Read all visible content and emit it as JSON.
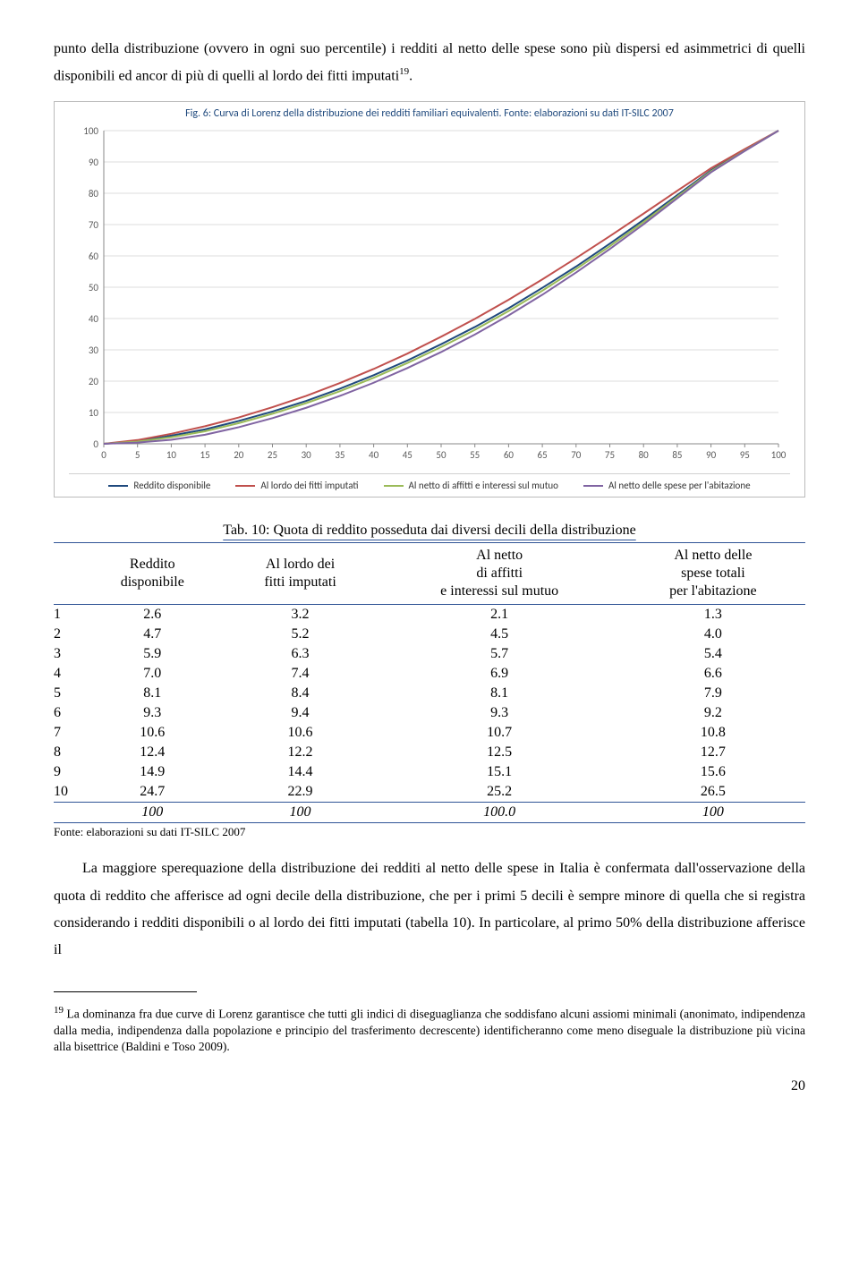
{
  "para1": "punto della distribuzione (ovvero in ogni suo percentile) i redditi al netto delle spese sono più dispersi ed asimmetrici di quelli disponibili ed ancor di più di quelli al lordo dei fitti imputati",
  "para1_sup": "19",
  "para1_end": ".",
  "chart": {
    "title": "Fig. 6: Curva di Lorenz della distribuzione dei redditi familiari equivalenti. Fonte: elaborazioni su dati IT-SILC 2007",
    "xticks": [
      0,
      5,
      10,
      15,
      20,
      25,
      30,
      35,
      40,
      45,
      50,
      55,
      60,
      65,
      70,
      75,
      80,
      85,
      90,
      95,
      100
    ],
    "yticks": [
      0,
      10,
      20,
      30,
      40,
      50,
      60,
      70,
      80,
      90,
      100
    ],
    "grid_color": "#dcdcdc",
    "background": "#ffffff",
    "series": [
      {
        "label": "Reddito disponibile",
        "color": "#1f497d",
        "points": [
          [
            0,
            0
          ],
          [
            5,
            0.8
          ],
          [
            10,
            2.6
          ],
          [
            15,
            4.6
          ],
          [
            20,
            7.3
          ],
          [
            25,
            10.3
          ],
          [
            30,
            13.7
          ],
          [
            35,
            17.6
          ],
          [
            40,
            21.9
          ],
          [
            45,
            26.6
          ],
          [
            50,
            31.8
          ],
          [
            55,
            37.3
          ],
          [
            60,
            43.3
          ],
          [
            65,
            49.8
          ],
          [
            70,
            56.6
          ],
          [
            75,
            63.9
          ],
          [
            80,
            71.5
          ],
          [
            85,
            79.4
          ],
          [
            90,
            87.3
          ],
          [
            95,
            93.8
          ],
          [
            100,
            100
          ]
        ]
      },
      {
        "label": "Al lordo dei fitti imputati",
        "color": "#c0504d",
        "points": [
          [
            0,
            0
          ],
          [
            5,
            1.2
          ],
          [
            10,
            3.2
          ],
          [
            15,
            5.6
          ],
          [
            20,
            8.4
          ],
          [
            25,
            11.7
          ],
          [
            30,
            15.3
          ],
          [
            35,
            19.4
          ],
          [
            40,
            23.9
          ],
          [
            45,
            28.8
          ],
          [
            50,
            34.2
          ],
          [
            55,
            39.9
          ],
          [
            60,
            46.0
          ],
          [
            65,
            52.5
          ],
          [
            70,
            59.3
          ],
          [
            75,
            66.3
          ],
          [
            80,
            73.5
          ],
          [
            85,
            80.8
          ],
          [
            90,
            88.0
          ],
          [
            95,
            94.1
          ],
          [
            100,
            100
          ]
        ]
      },
      {
        "label": "Al netto di affitti e interessi sul mutuo",
        "color": "#9bbb59",
        "points": [
          [
            0,
            0
          ],
          [
            5,
            0.7
          ],
          [
            10,
            2.1
          ],
          [
            15,
            4.0
          ],
          [
            20,
            6.6
          ],
          [
            25,
            9.6
          ],
          [
            30,
            13.0
          ],
          [
            35,
            16.8
          ],
          [
            40,
            21.1
          ],
          [
            45,
            25.8
          ],
          [
            50,
            30.9
          ],
          [
            55,
            36.4
          ],
          [
            60,
            42.4
          ],
          [
            65,
            48.9
          ],
          [
            70,
            55.8
          ],
          [
            75,
            63.1
          ],
          [
            80,
            70.8
          ],
          [
            85,
            78.9
          ],
          [
            90,
            87.0
          ],
          [
            95,
            93.6
          ],
          [
            100,
            100
          ]
        ]
      },
      {
        "label": "Al netto delle spese per l'abitazione",
        "color": "#8064a2",
        "points": [
          [
            0,
            0
          ],
          [
            5,
            0.4
          ],
          [
            10,
            1.3
          ],
          [
            15,
            2.9
          ],
          [
            20,
            5.3
          ],
          [
            25,
            8.2
          ],
          [
            30,
            11.5
          ],
          [
            35,
            15.3
          ],
          [
            40,
            19.5
          ],
          [
            45,
            24.2
          ],
          [
            50,
            29.3
          ],
          [
            55,
            34.9
          ],
          [
            60,
            41.0
          ],
          [
            65,
            47.6
          ],
          [
            70,
            54.7
          ],
          [
            75,
            62.2
          ],
          [
            80,
            70.1
          ],
          [
            85,
            78.4
          ],
          [
            90,
            86.7
          ],
          [
            95,
            93.5
          ],
          [
            100,
            100
          ]
        ]
      }
    ]
  },
  "table": {
    "title": "Tab. 10: Quota di reddito posseduta dai diversi decili della distribuzione",
    "headers": [
      "",
      "Reddito\ndisponibile",
      "Al lordo dei\nfitti imputati",
      "Al netto\ndi affitti\ne interessi sul mutuo",
      "Al netto delle\nspese totali\nper l'abitazione"
    ],
    "rows": [
      [
        "1",
        "2.6",
        "3.2",
        "2.1",
        "1.3"
      ],
      [
        "2",
        "4.7",
        "5.2",
        "4.5",
        "4.0"
      ],
      [
        "3",
        "5.9",
        "6.3",
        "5.7",
        "5.4"
      ],
      [
        "4",
        "7.0",
        "7.4",
        "6.9",
        "6.6"
      ],
      [
        "5",
        "8.1",
        "8.4",
        "8.1",
        "7.9"
      ],
      [
        "6",
        "9.3",
        "9.4",
        "9.3",
        "9.2"
      ],
      [
        "7",
        "10.6",
        "10.6",
        "10.7",
        "10.8"
      ],
      [
        "8",
        "12.4",
        "12.2",
        "12.5",
        "12.7"
      ],
      [
        "9",
        "14.9",
        "14.4",
        "15.1",
        "15.6"
      ],
      [
        "10",
        "24.7",
        "22.9",
        "25.2",
        "26.5"
      ]
    ],
    "totals": [
      "",
      "100",
      "100",
      "100.0",
      "100"
    ]
  },
  "source": "Fonte: elaborazioni su dati IT-SILC 2007",
  "para2": "La maggiore sperequazione della distribuzione dei redditi al netto delle spese in Italia è confermata dall'osservazione della quota di reddito che afferisce ad ogni decile della distribuzione, che per i primi 5 decili è sempre minore di quella che si registra considerando i redditi disponibili o al lordo dei fitti imputati (tabella 10). In particolare, al primo 50% della distribuzione afferisce il",
  "footnote_num": "19",
  "footnote_text": " La dominanza fra due curve di Lorenz garantisce che tutti gli indici di diseguaglianza che soddisfano alcuni assiomi minimali (anonimato, indipendenza dalla media, indipendenza dalla popolazione e principio del trasferimento decrescente) identificheranno come meno diseguale la distribuzione più vicina alla bisettrice (Baldini e Toso 2009).",
  "page_number": "20"
}
